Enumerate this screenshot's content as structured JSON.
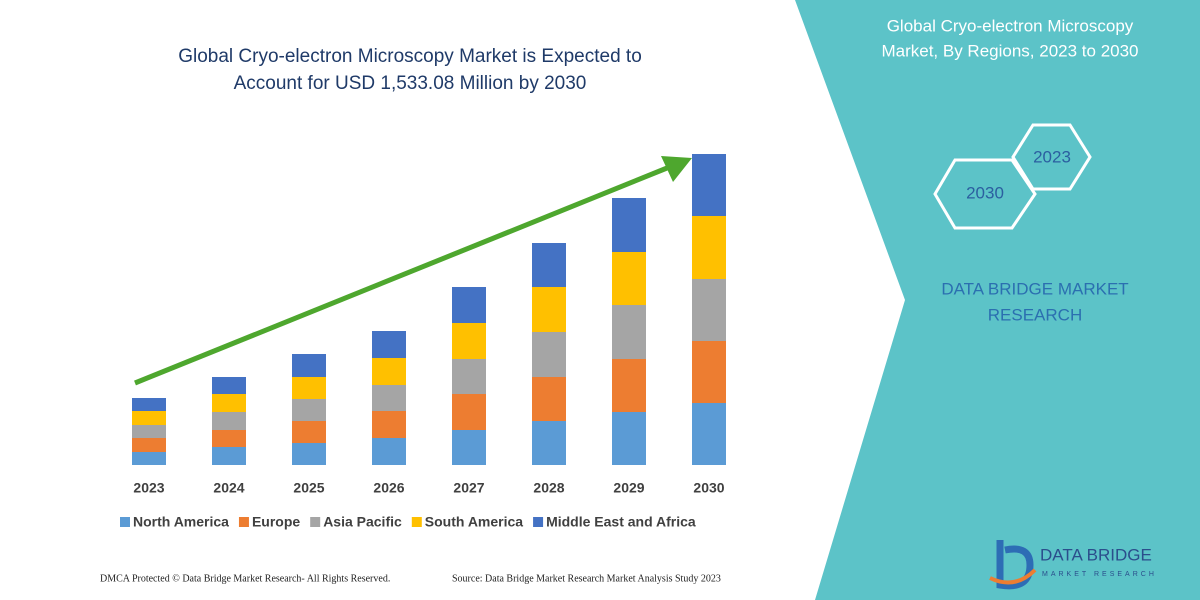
{
  "chart_data": {
    "type": "stacked-bar",
    "title": [
      "Global Cryo-electron Microscopy Market is Expected to",
      "Account for USD 1,533.08 Million by 2030"
    ],
    "categories": [
      "2023",
      "2024",
      "2025",
      "2026",
      "2027",
      "2028",
      "2029",
      "2030"
    ],
    "series": [
      {
        "name": "North America",
        "color": "#5b9bd5",
        "values": [
          13,
          18,
          22,
          27,
          35,
          44,
          53,
          62
        ]
      },
      {
        "name": "Europe",
        "color": "#ed7d31",
        "values": [
          14,
          17,
          22,
          27,
          36,
          44,
          53,
          62
        ]
      },
      {
        "name": "Asia Pacific",
        "color": "#a5a5a5",
        "values": [
          13,
          18,
          22,
          26,
          35,
          45,
          54,
          62
        ]
      },
      {
        "name": "South America",
        "color": "#ffc000",
        "values": [
          14,
          18,
          22,
          27,
          36,
          45,
          53,
          63
        ]
      },
      {
        "name": "Middle East and Africa",
        "color": "#4472c4",
        "values": [
          13,
          17,
          23,
          27,
          36,
          44,
          54,
          62
        ]
      }
    ]
  },
  "panel": {
    "title": [
      "Global Cryo-electron Microscopy",
      "Market, By Regions, 2023 to 2030"
    ],
    "hexagons": [
      "2023",
      "2030"
    ],
    "brand": [
      "DATA BRIDGE MARKET",
      "RESEARCH"
    ]
  },
  "logo": {
    "name": "DATA BRIDGE",
    "tagline": "MARKET RESEARCH"
  },
  "footer": {
    "left": "DMCA Protected © Data Bridge Market Research- All Rights Reserved.",
    "right": "Source: Data Bridge Market Research Market Analysis Study 2023"
  }
}
